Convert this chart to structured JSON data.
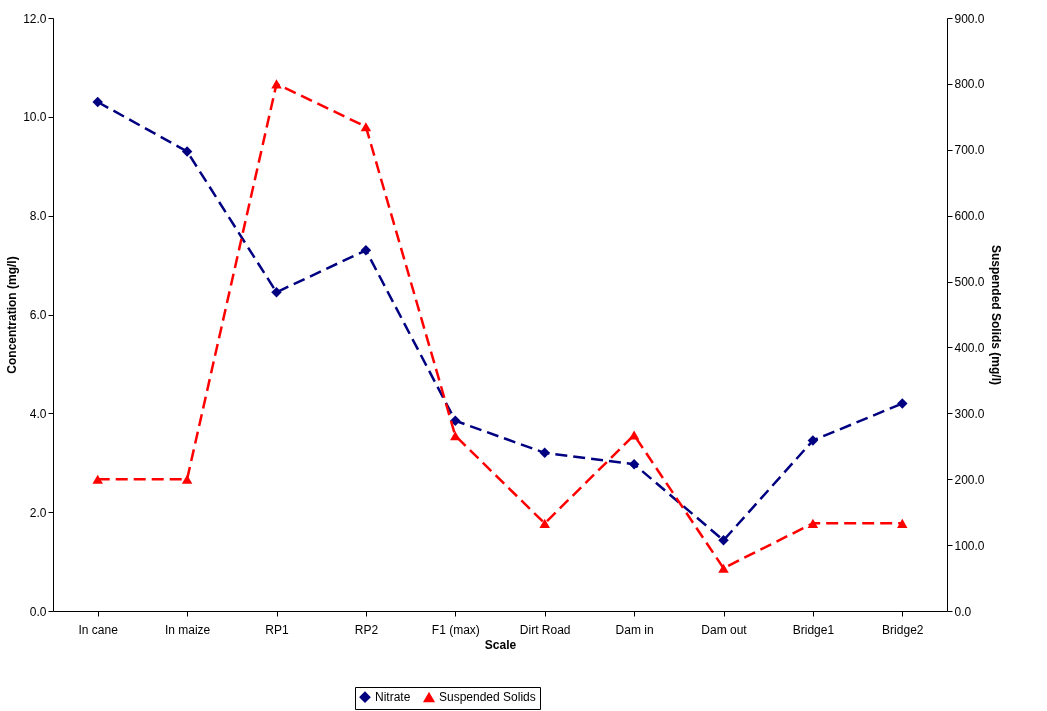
{
  "chart_data": {
    "type": "line",
    "xlabel": "Scale",
    "ylabel": "Concentration (mg/l)",
    "y2label": "Suspended Solids (mg/l)",
    "categories": [
      "In cane",
      "In maize",
      "RP1",
      "RP2",
      "F1 (max)",
      "Dirt Road",
      "Dam in",
      "Dam out",
      "Bridge1",
      "Bridge2"
    ],
    "series": [
      {
        "name": "Nitrate",
        "color": "#000080",
        "marker": "diamond",
        "values": [
          10.3,
          9.3,
          6.45,
          7.3,
          3.85,
          3.2,
          2.97,
          1.43,
          3.45,
          4.2
        ]
      },
      {
        "name": "Suspended Solids",
        "color": "#ff0000",
        "marker": "triangle",
        "axis": "y2",
        "values": [
          200,
          200,
          800,
          735,
          266,
          133,
          267,
          65,
          133,
          133
        ]
      }
    ],
    "ylim": [
      0,
      12
    ],
    "yticks": [
      {
        "value": 0,
        "label": "0.0"
      },
      {
        "value": 2,
        "label": "2.0"
      },
      {
        "value": 4,
        "label": "4.0"
      },
      {
        "value": 6,
        "label": "6.0"
      },
      {
        "value": 8,
        "label": "8.0"
      },
      {
        "value": 10,
        "label": "10.0"
      },
      {
        "value": 12,
        "label": "12.0"
      }
    ],
    "y2lim": [
      0,
      900
    ],
    "y2ticks": [
      {
        "value": 0,
        "label": "0.0"
      },
      {
        "value": 100,
        "label": "100.0"
      },
      {
        "value": 200,
        "label": "200.0"
      },
      {
        "value": 300,
        "label": "300.0"
      },
      {
        "value": 400,
        "label": "400.0"
      },
      {
        "value": 500,
        "label": "500.0"
      },
      {
        "value": 600,
        "label": "600.0"
      },
      {
        "value": 700,
        "label": "700.0"
      },
      {
        "value": 800,
        "label": "800.0"
      },
      {
        "value": 900,
        "label": "900.0"
      }
    ],
    "grid": false,
    "legend": "bottom",
    "line_style": "dashed"
  }
}
